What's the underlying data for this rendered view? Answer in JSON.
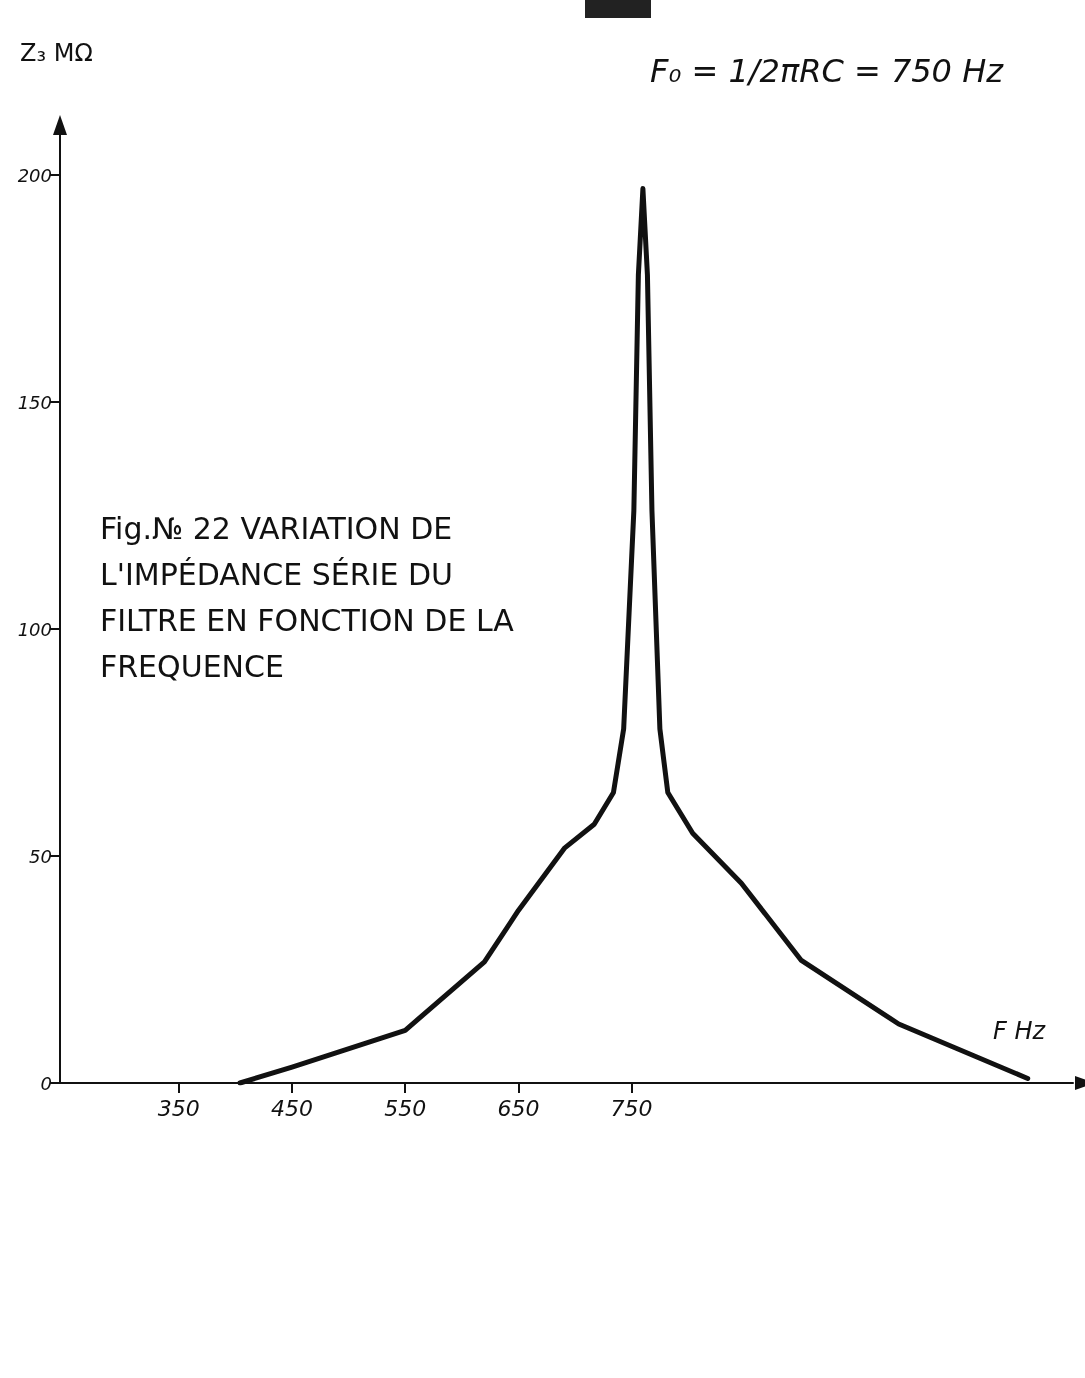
{
  "chart_data": {
    "type": "line",
    "title": "Fig.№ 22 VARIATION DE L'IMPÉDANCE SÉRIE DU FILTRE EN FONCTION DE LA FREQUENCE",
    "xlabel": "F Hz",
    "ylabel": "Z₃ MΩ",
    "annotations": [
      "F₀ = 1/2πRC = 750 Hz"
    ],
    "xlim": [
      245,
      1140
    ],
    "xticks": [
      350,
      450,
      550,
      650,
      750
    ],
    "ylim": [
      0,
      200
    ],
    "yticks": [
      0,
      50,
      100,
      150,
      200
    ],
    "grid": false,
    "marker": "none",
    "line_style": "solid",
    "series": [
      {
        "color": "#111111",
        "x": [
          404,
          450,
          550,
          620,
          650,
          691,
          717,
          734,
          743,
          752,
          756,
          760,
          764,
          768,
          775,
          782,
          804,
          847,
          900,
          986,
          1100
        ],
        "values": [
          0,
          3.5,
          11.6,
          26.7,
          38,
          51.8,
          57,
          64,
          78,
          126,
          178,
          197,
          178,
          126,
          78,
          64,
          55,
          44,
          27,
          13,
          1
        ]
      }
    ]
  }
}
